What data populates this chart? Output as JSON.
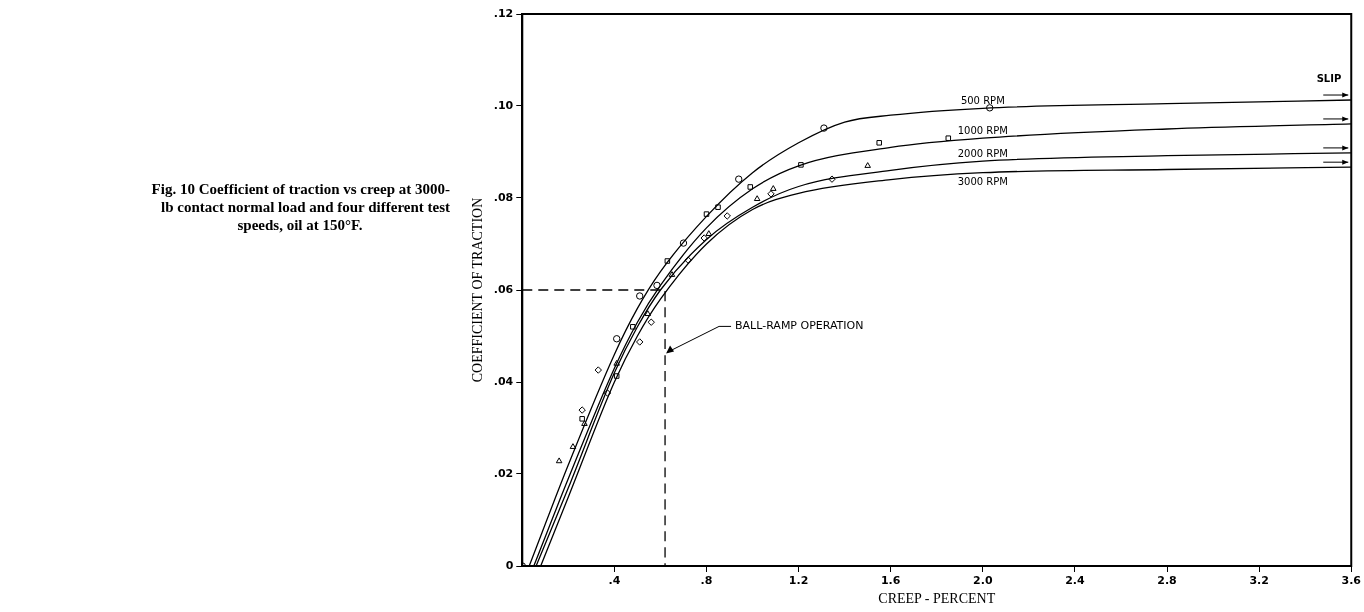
{
  "chart_data": {
    "type": "line",
    "title": "Fig. 10  Coefficient of traction vs creep at 3000-lb contact normal load and four different test speeds, oil at 150°F.",
    "xlabel": "CREEP - PERCENT",
    "ylabel": "COEFFICIENT OF TRACTION",
    "xlim": [
      0,
      3.6
    ],
    "ylim": [
      0,
      0.12
    ],
    "xticks": [
      {
        "value": 0.4,
        "label": ".4"
      },
      {
        "value": 0.8,
        "label": ".8"
      },
      1.2,
      1.6,
      {
        "value": 2.0,
        "label": "2.0"
      },
      2.4,
      2.8,
      3.2,
      3.6
    ],
    "yticks": [
      0,
      {
        "value": 0.02,
        "label": ".02"
      },
      {
        "value": 0.04,
        "label": ".04"
      },
      {
        "value": 0.06,
        "label": ".06"
      },
      {
        "value": 0.08,
        "label": ".08"
      },
      {
        "value": 0.1,
        "label": ".10"
      },
      {
        "value": 0.12,
        "label": ".12"
      }
    ],
    "grid": false,
    "legend": false,
    "marker": "none",
    "line_style": "solid",
    "series": [
      {
        "name": "500 RPM",
        "color": "#000000",
        "x": [
          0.03,
          0.2,
          0.4,
          0.5,
          0.6,
          0.8,
          1.0,
          1.2,
          1.4,
          1.6,
          2.0,
          2.8,
          3.6
        ],
        "values": [
          0,
          0.022,
          0.046,
          0.056,
          0.064,
          0.076,
          0.0855,
          0.092,
          0.0965,
          0.098,
          0.0995,
          0.1005,
          0.1013
        ]
      },
      {
        "name": "1000 RPM",
        "color": "#000000",
        "x": [
          0.05,
          0.2,
          0.4,
          0.5,
          0.6,
          0.8,
          1.0,
          1.2,
          1.6,
          2.0,
          2.8,
          3.6
        ],
        "values": [
          0,
          0.019,
          0.043,
          0.053,
          0.061,
          0.0735,
          0.082,
          0.087,
          0.091,
          0.093,
          0.095,
          0.0961
        ]
      },
      {
        "name": "2000 RPM",
        "color": "#000000",
        "x": [
          0.06,
          0.2,
          0.4,
          0.5,
          0.6,
          0.8,
          1.0,
          1.2,
          1.6,
          2.0,
          2.8,
          3.6
        ],
        "values": [
          0,
          0.017,
          0.042,
          0.052,
          0.06,
          0.071,
          0.078,
          0.0825,
          0.086,
          0.088,
          0.0892,
          0.0898
        ]
      },
      {
        "name": "3000 RPM",
        "color": "#000000",
        "x": [
          0.08,
          0.2,
          0.4,
          0.5,
          0.6,
          0.8,
          1.0,
          1.2,
          1.6,
          2.0,
          2.8,
          3.6
        ],
        "values": [
          0,
          0.015,
          0.04,
          0.05,
          0.058,
          0.07,
          0.0775,
          0.081,
          0.084,
          0.0855,
          0.0862,
          0.0867
        ]
      },
      {
        "type": "scatter",
        "marker": "circle",
        "color": "#000000",
        "x": [
          0,
          0.41,
          0.51,
          0.585,
          0.7,
          0.94,
          1.31,
          2.03
        ],
        "values": [
          0,
          0.0494,
          0.0587,
          0.061,
          0.0702,
          0.0841,
          0.0952,
          0.0996
        ]
      },
      {
        "type": "scatter",
        "marker": "square",
        "color": "#000000",
        "x": [
          0.26,
          0.41,
          0.48,
          0.63,
          0.8,
          0.85,
          0.99,
          1.21,
          1.55,
          1.85
        ],
        "values": [
          0.032,
          0.0413,
          0.052,
          0.0663,
          0.0765,
          0.078,
          0.0824,
          0.0872,
          0.092,
          0.093
        ]
      },
      {
        "type": "scatter",
        "marker": "triangle",
        "color": "#000000",
        "x": [
          0.16,
          0.22,
          0.27,
          0.41,
          0.545,
          0.65,
          0.81,
          1.02,
          1.09,
          1.5
        ],
        "values": [
          0.0228,
          0.0259,
          0.0309,
          0.044,
          0.0548,
          0.0633,
          0.0722,
          0.0798,
          0.082,
          0.087
        ]
      },
      {
        "type": "scatter",
        "marker": "diamond",
        "color": "#000000",
        "x": [
          0.26,
          0.33,
          0.37,
          0.51,
          0.56,
          0.72,
          0.79,
          0.89,
          1.08,
          1.345
        ],
        "values": [
          0.0339,
          0.0426,
          0.0376,
          0.0487,
          0.053,
          0.0665,
          0.0713,
          0.0761,
          0.0809,
          0.0841
        ]
      },
      {
        "type": "line",
        "line_style": "dashed",
        "color": "#000000",
        "x": [
          0,
          0.62,
          0.62
        ],
        "values": [
          0.06,
          0.06,
          0
        ]
      }
    ],
    "annotations": [
      {
        "text": "BALL-RAMP OPERATION",
        "x": 0.62,
        "y": 0.046
      },
      {
        "text": "SLIP",
        "x": 3.6,
        "y": 0.1013
      }
    ]
  }
}
